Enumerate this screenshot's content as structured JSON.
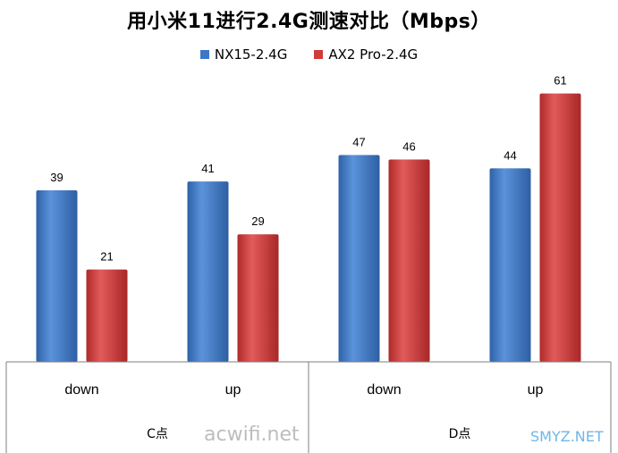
{
  "chart_data": {
    "type": "bar",
    "title": "用小米11进行2.4G测速对比（Mbps）",
    "groups": [
      {
        "label": "C点",
        "categories": [
          "down",
          "up"
        ]
      },
      {
        "label": "D点",
        "categories": [
          "down",
          "up"
        ]
      }
    ],
    "categories": [
      "down",
      "up",
      "down",
      "up"
    ],
    "series": [
      {
        "name": "NX15-2.4G",
        "color": "#3b78c7",
        "values": [
          39,
          41,
          47,
          44
        ]
      },
      {
        "name": "AX2 Pro-2.4G",
        "color": "#d03a3a",
        "values": [
          21,
          29,
          46,
          61
        ]
      }
    ],
    "ylim": [
      0,
      66
    ],
    "grid": false,
    "legend_position": "top"
  },
  "watermarks": {
    "left": "acwifi.net",
    "right": "SMYZ.NET"
  }
}
